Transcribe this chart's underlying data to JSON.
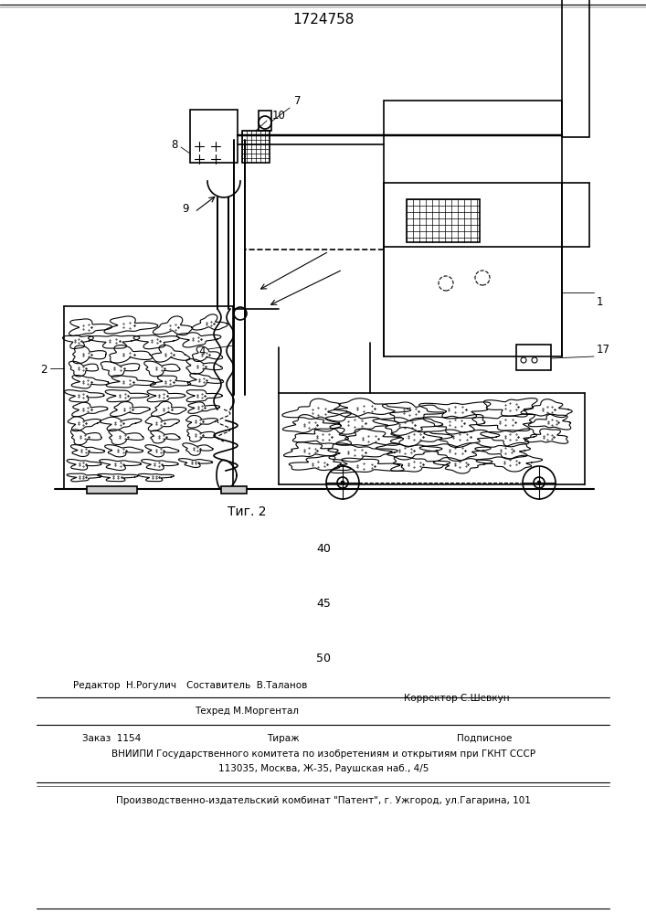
{
  "title_number": "1724758",
  "fig_label": "Τиг. 2",
  "bg_color": "#ffffff",
  "line_color": "#000000",
  "line_width": 1.2,
  "bottom_text": {
    "n40": "40",
    "n45": "45",
    "n50": "50",
    "editor": "Редактор  Н.Рогулич",
    "composer": "Составитель  В.Таланов",
    "techred": "Техред М.Моргентал",
    "corrector": "Корректор С.Шевкун",
    "order": "Заказ  1154",
    "tirazh": "Тираж",
    "podpisnoe": "Подписное",
    "vniiipi": "ВНИИПИ Государственного комитета по изобретениям и открытиям при ГКНТ СССР",
    "address": "113035, Москва, Ж-35, Раушская наб., 4/5",
    "plant": "Производственно-издательский комбинат \"Патент\", г. Ужгород, ул.Гагарина, 101"
  }
}
